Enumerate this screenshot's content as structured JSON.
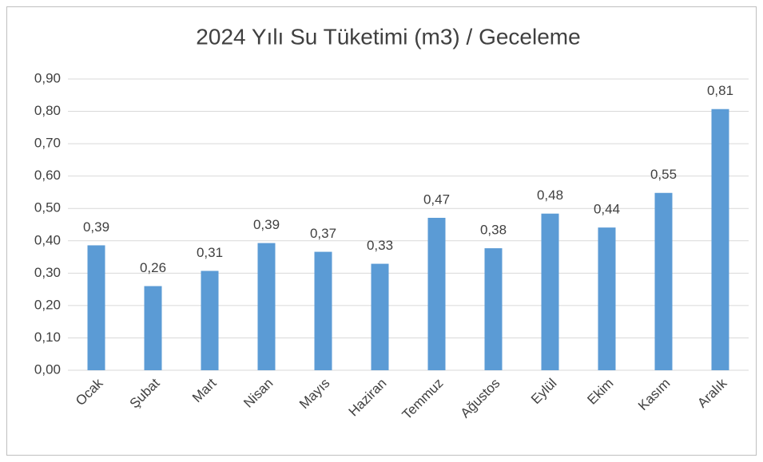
{
  "chart_data": {
    "type": "bar",
    "title": "2024 Yılı Su Tüketimi  (m3) / Geceleme",
    "categories": [
      "Ocak",
      "Şubat",
      "Mart",
      "Nisan",
      "Mayıs",
      "Haziran",
      "Temmuz",
      "Ağustos",
      "Eylül",
      "Ekim",
      "Kasım",
      "Aralık"
    ],
    "values": [
      0.386,
      0.26,
      0.307,
      0.393,
      0.366,
      0.329,
      0.471,
      0.377,
      0.484,
      0.441,
      0.548,
      0.807
    ],
    "value_labels": [
      "0,39",
      "0,26",
      "0,31",
      "0,39",
      "0,37",
      "0,33",
      "0,47",
      "0,38",
      "0,48",
      "0,44",
      "0,55",
      "0,81"
    ],
    "color": "#5b9bd5",
    "ylim": [
      0,
      0.9
    ],
    "yticks": [
      {
        "value": 0,
        "label": "0,00"
      },
      {
        "value": 0.1,
        "label": "0,10"
      },
      {
        "value": 0.2,
        "label": "0,20"
      },
      {
        "value": 0.3,
        "label": "0,30"
      },
      {
        "value": 0.4,
        "label": "0,40"
      },
      {
        "value": 0.5,
        "label": "0,50"
      },
      {
        "value": 0.6,
        "label": "0,60"
      },
      {
        "value": 0.7,
        "label": "0,70"
      },
      {
        "value": 0.8,
        "label": "0,80"
      },
      {
        "value": 0.9,
        "label": "0,90"
      }
    ],
    "grid": true
  }
}
